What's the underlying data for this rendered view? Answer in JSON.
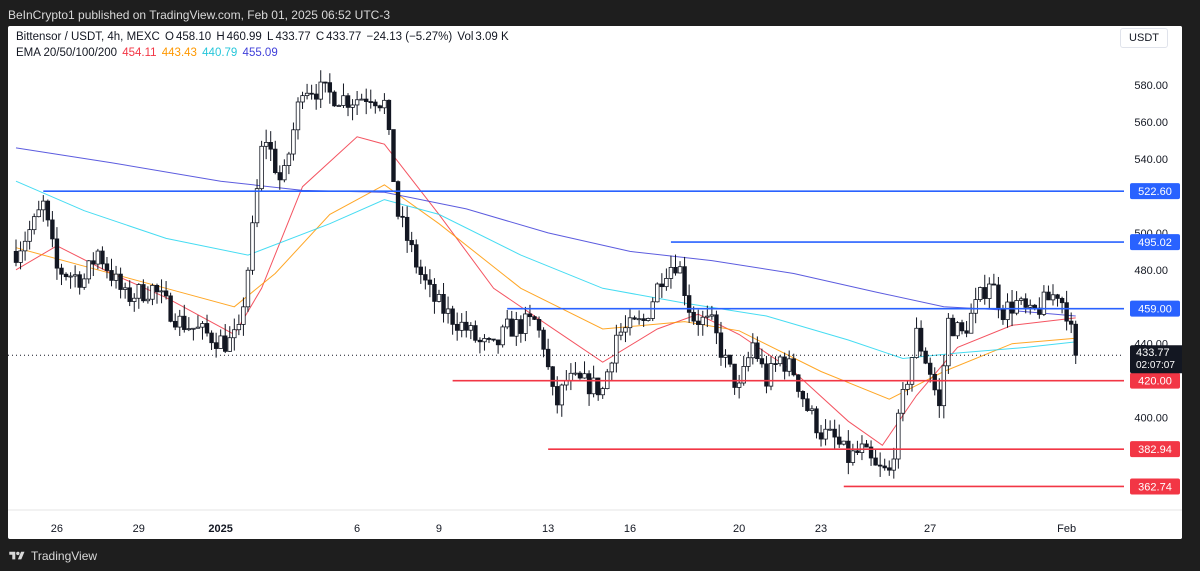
{
  "header": {
    "publisher_line": "BeInCrypto1 published on TradingView.com, Feb 01, 2025 06:52 UTC-3"
  },
  "legend": {
    "symbol": "Bittensor / USDT, 4h, MEXC",
    "open_label": "O",
    "open": "458.10",
    "high_label": "H",
    "high": "460.99",
    "low_label": "L",
    "low": "433.77",
    "close_label": "C",
    "close": "433.77",
    "change": "−24.13 (−5.27%)",
    "volume_label": "Vol",
    "volume": "3.09 K",
    "ema_title": "EMA 20/50/100/200",
    "ema_values": [
      "454.11",
      "443.43",
      "440.79",
      "455.09"
    ],
    "ema_colors": [
      "#f23645",
      "#ff9800",
      "#26d6f0",
      "#3f3fd9"
    ]
  },
  "currency_label": "USDT",
  "footer": {
    "brand": "TradingView",
    "logo_icon": "tradingview-logo-icon"
  },
  "chart_data": {
    "type": "candlestick",
    "y_range": [
      350,
      612
    ],
    "y_ticks": [
      "580.00",
      "560.00",
      "540.00",
      "500.00",
      "480.00",
      "440.00",
      "400.00"
    ],
    "x_ticks": [
      "26",
      "29",
      "2025",
      "6",
      "9",
      "13",
      "16",
      "20",
      "23",
      "27",
      "Feb"
    ],
    "x_range_days": [
      "2024-12-24T12:00",
      "2025-02-01T10:00"
    ],
    "colors": {
      "up": "#089981",
      "down": "#131722",
      "support": "#f23645",
      "resistance": "#2962ff"
    },
    "current_price": {
      "value": 433.77,
      "label": "433.77",
      "countdown": "02:07:07"
    },
    "horizontal_levels": [
      {
        "price": 522.6,
        "label": "522.60",
        "kind": "resistance",
        "from_date": "2024-12-25T12:00"
      },
      {
        "price": 495.02,
        "label": "495.02",
        "kind": "resistance",
        "from_date": "2025-01-17T12:00"
      },
      {
        "price": 459.0,
        "label": "459.00",
        "kind": "resistance",
        "from_date": "2025-01-11T12:00"
      },
      {
        "price": 420.0,
        "label": "420.00",
        "kind": "support",
        "from_date": "2025-01-09T12:00"
      },
      {
        "price": 382.94,
        "label": "382.94",
        "kind": "support",
        "from_date": "2025-01-13T00:00"
      },
      {
        "price": 362.74,
        "label": "362.74",
        "kind": "support",
        "from_date": "2025-01-23T20:00"
      }
    ],
    "price_path": [
      [
        "2024-12-24T12:00",
        490
      ],
      [
        "2024-12-25T04:00",
        505
      ],
      [
        "2024-12-25T12:00",
        515
      ],
      [
        "2024-12-26T00:00",
        480
      ],
      [
        "2024-12-27T00:00",
        475
      ],
      [
        "2024-12-27T12:00",
        490
      ],
      [
        "2024-12-28T12:00",
        465
      ],
      [
        "2024-12-29T12:00",
        470
      ],
      [
        "2024-12-30T12:00",
        452
      ],
      [
        "2024-12-31T12:00",
        445
      ],
      [
        "2025-01-01T06:00",
        440
      ],
      [
        "2025-01-01T16:00",
        445
      ],
      [
        "2025-01-02T02:00",
        490
      ],
      [
        "2025-01-02T14:00",
        555
      ],
      [
        "2025-01-03T06:00",
        525
      ],
      [
        "2025-01-04T00:00",
        580
      ],
      [
        "2025-01-05T00:00",
        575
      ],
      [
        "2025-01-05T18:00",
        572
      ],
      [
        "2025-01-06T12:00",
        575
      ],
      [
        "2025-01-07T00:00",
        570
      ],
      [
        "2025-01-07T12:00",
        510
      ],
      [
        "2025-01-08T06:00",
        480
      ],
      [
        "2025-01-08T18:00",
        465
      ],
      [
        "2025-01-09T06:00",
        457
      ],
      [
        "2025-01-10T00:00",
        448
      ],
      [
        "2025-01-10T12:00",
        440
      ],
      [
        "2025-01-11T00:00",
        437
      ],
      [
        "2025-01-11T12:00",
        448
      ],
      [
        "2025-01-12T12:00",
        452
      ],
      [
        "2025-01-12T20:00",
        440
      ],
      [
        "2025-01-13T06:00",
        405
      ],
      [
        "2025-01-13T16:00",
        420
      ],
      [
        "2025-01-14T12:00",
        418
      ],
      [
        "2025-01-15T00:00",
        415
      ],
      [
        "2025-01-15T12:00",
        445
      ],
      [
        "2025-01-16T12:00",
        452
      ],
      [
        "2025-01-17T06:00",
        480
      ],
      [
        "2025-01-17T18:00",
        485
      ],
      [
        "2025-01-18T06:00",
        455
      ],
      [
        "2025-01-19T00:00",
        450
      ],
      [
        "2025-01-19T12:00",
        430
      ],
      [
        "2025-01-20T00:00",
        415
      ],
      [
        "2025-01-20T12:00",
        440
      ],
      [
        "2025-01-21T00:00",
        420
      ],
      [
        "2025-01-21T12:00",
        432
      ],
      [
        "2025-01-22T00:00",
        425
      ],
      [
        "2025-01-22T12:00",
        405
      ],
      [
        "2025-01-23T00:00",
        392
      ],
      [
        "2025-01-23T12:00",
        388
      ],
      [
        "2025-01-24T00:00",
        378
      ],
      [
        "2025-01-24T12:00",
        382
      ],
      [
        "2025-01-25T00:00",
        372
      ],
      [
        "2025-01-25T12:00",
        370
      ],
      [
        "2025-01-26T00:00",
        410
      ],
      [
        "2025-01-26T12:00",
        445
      ],
      [
        "2025-01-27T00:00",
        425
      ],
      [
        "2025-01-27T08:00",
        405
      ],
      [
        "2025-01-27T16:00",
        452
      ],
      [
        "2025-01-28T04:00",
        445
      ],
      [
        "2025-01-28T16:00",
        460
      ],
      [
        "2025-01-29T04:00",
        475
      ],
      [
        "2025-01-29T16:00",
        458
      ],
      [
        "2025-01-30T04:00",
        462
      ],
      [
        "2025-01-30T16:00",
        455
      ],
      [
        "2025-01-31T04:00",
        462
      ],
      [
        "2025-01-31T16:00",
        468
      ],
      [
        "2025-02-01T00:00",
        458
      ],
      [
        "2025-02-01T08:00",
        433.77
      ]
    ],
    "ema_series": [
      {
        "name": "EMA 20",
        "color": "#f23645",
        "points": [
          [
            "2024-12-24T12:00",
            480
          ],
          [
            "2024-12-26T00:00",
            493
          ],
          [
            "2024-12-28T00:00",
            478
          ],
          [
            "2024-12-30T00:00",
            465
          ],
          [
            "2025-01-01T12:00",
            445
          ],
          [
            "2025-01-02T12:00",
            470
          ],
          [
            "2025-01-04T00:00",
            525
          ],
          [
            "2025-01-06T00:00",
            552
          ],
          [
            "2025-01-07T00:00",
            548
          ],
          [
            "2025-01-09T00:00",
            510
          ],
          [
            "2025-01-11T00:00",
            470
          ],
          [
            "2025-01-13T00:00",
            450
          ],
          [
            "2025-01-15T00:00",
            430
          ],
          [
            "2025-01-17T00:00",
            448
          ],
          [
            "2025-01-18T12:00",
            456
          ],
          [
            "2025-01-20T00:00",
            445
          ],
          [
            "2025-01-22T00:00",
            425
          ],
          [
            "2025-01-24T00:00",
            398
          ],
          [
            "2025-01-25T06:00",
            385
          ],
          [
            "2025-01-26T12:00",
            412
          ],
          [
            "2025-01-28T00:00",
            438
          ],
          [
            "2025-01-30T00:00",
            450
          ],
          [
            "2025-02-01T08:00",
            454
          ]
        ]
      },
      {
        "name": "EMA 50",
        "color": "#ff9800",
        "points": [
          [
            "2024-12-24T12:00",
            492
          ],
          [
            "2024-12-27T00:00",
            482
          ],
          [
            "2024-12-30T00:00",
            470
          ],
          [
            "2025-01-01T12:00",
            460
          ],
          [
            "2025-01-03T00:00",
            478
          ],
          [
            "2025-01-05T00:00",
            510
          ],
          [
            "2025-01-07T00:00",
            526
          ],
          [
            "2025-01-09T00:00",
            505
          ],
          [
            "2025-01-12T00:00",
            470
          ],
          [
            "2025-01-15T00:00",
            448
          ],
          [
            "2025-01-18T00:00",
            452
          ],
          [
            "2025-01-20T00:00",
            447
          ],
          [
            "2025-01-23T00:00",
            425
          ],
          [
            "2025-01-25T12:00",
            410
          ],
          [
            "2025-01-27T12:00",
            425
          ],
          [
            "2025-01-30T00:00",
            440
          ],
          [
            "2025-02-01T08:00",
            443
          ]
        ]
      },
      {
        "name": "EMA 100",
        "color": "#26d6f0",
        "points": [
          [
            "2024-12-24T12:00",
            528
          ],
          [
            "2024-12-27T00:00",
            512
          ],
          [
            "2024-12-30T00:00",
            497
          ],
          [
            "2025-01-02T00:00",
            488
          ],
          [
            "2025-01-05T00:00",
            505
          ],
          [
            "2025-01-07T00:00",
            518
          ],
          [
            "2025-01-09T00:00",
            510
          ],
          [
            "2025-01-12T00:00",
            488
          ],
          [
            "2025-01-15T00:00",
            470
          ],
          [
            "2025-01-18T00:00",
            462
          ],
          [
            "2025-01-21T00:00",
            455
          ],
          [
            "2025-01-24T00:00",
            442
          ],
          [
            "2025-01-26T00:00",
            432
          ],
          [
            "2025-01-28T00:00",
            435
          ],
          [
            "2025-01-30T12:00",
            438
          ],
          [
            "2025-02-01T08:00",
            441
          ]
        ]
      },
      {
        "name": "EMA 200",
        "color": "#3f3fd9",
        "points": [
          [
            "2024-12-24T12:00",
            546
          ],
          [
            "2024-12-28T00:00",
            538
          ],
          [
            "2025-01-01T00:00",
            528
          ],
          [
            "2025-01-04T00:00",
            523
          ],
          [
            "2025-01-07T00:00",
            522
          ],
          [
            "2025-01-10T00:00",
            513
          ],
          [
            "2025-01-13T00:00",
            500
          ],
          [
            "2025-01-16T00:00",
            490
          ],
          [
            "2025-01-19T00:00",
            485
          ],
          [
            "2025-01-22T00:00",
            478
          ],
          [
            "2025-01-25T00:00",
            468
          ],
          [
            "2025-01-27T12:00",
            460
          ],
          [
            "2025-01-30T00:00",
            458
          ],
          [
            "2025-02-01T08:00",
            455
          ]
        ]
      }
    ]
  }
}
